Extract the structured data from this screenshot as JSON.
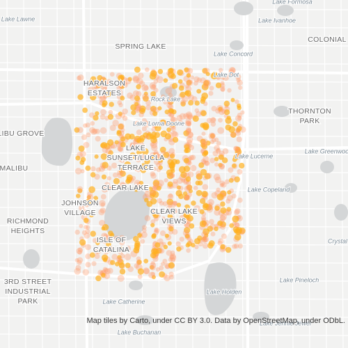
{
  "labels": [
    {
      "lines": [
        "Lake Formosa"
      ],
      "kind": "water"
    },
    {
      "lines": [
        "Lake Lawne"
      ],
      "kind": "water"
    },
    {
      "lines": [
        "Lake Ivanhoe"
      ],
      "kind": "water"
    },
    {
      "lines": [
        "COLONIAL"
      ],
      "kind": "area"
    },
    {
      "lines": [
        "SPRING LAKE"
      ],
      "kind": "area"
    },
    {
      "lines": [
        "Lake Concord"
      ],
      "kind": "water"
    },
    {
      "lines": [
        "Lake Dot"
      ],
      "kind": "water"
    },
    {
      "lines": [
        "HARALSON",
        "ESTATES"
      ],
      "kind": "area"
    },
    {
      "lines": [
        "Rock Lake"
      ],
      "kind": "water"
    },
    {
      "lines": [
        "THORNTON",
        "PARK"
      ],
      "kind": "area"
    },
    {
      "lines": [
        "Lake Lorna Doone"
      ],
      "kind": "water"
    },
    {
      "lines": [
        "LIBU GROVE"
      ],
      "kind": "area"
    },
    {
      "lines": [
        "LAKE",
        "SUNSET/LUCLA",
        "TERRACE"
      ],
      "kind": "area"
    },
    {
      "lines": [
        "Lake Lucerne"
      ],
      "kind": "water"
    },
    {
      "lines": [
        "Lake Greenwood"
      ],
      "kind": "water"
    },
    {
      "lines": [
        "MALIBU"
      ],
      "kind": "area"
    },
    {
      "lines": [
        "CLEAR LAKE"
      ],
      "kind": "area"
    },
    {
      "lines": [
        "Lake Copeland"
      ],
      "kind": "water"
    },
    {
      "lines": [
        "JOHNSON",
        "VILLAGE"
      ],
      "kind": "area"
    },
    {
      "lines": [
        "CLEAR LAKE",
        "VIEWS"
      ],
      "kind": "area"
    },
    {
      "lines": [
        "RICHMOND",
        "HEIGHTS"
      ],
      "kind": "area"
    },
    {
      "lines": [
        "ISLE OF",
        "CATALINA"
      ],
      "kind": "area"
    },
    {
      "lines": [
        "Crystal"
      ],
      "kind": "water"
    },
    {
      "lines": [
        "3RD STREET",
        "INDUSTRIAL",
        "PARK"
      ],
      "kind": "area"
    },
    {
      "lines": [
        "Lake Pineloch"
      ],
      "kind": "water"
    },
    {
      "lines": [
        "Lake Holden"
      ],
      "kind": "water"
    },
    {
      "lines": [
        "Lake Catherine"
      ],
      "kind": "water"
    },
    {
      "lines": [
        "Lake Jennie Jewel"
      ],
      "kind": "water"
    },
    {
      "lines": [
        "Lake Buchanan"
      ],
      "kind": "water"
    }
  ],
  "attribution": "Map tiles by Carto, under CC BY 3.0. Data by OpenStreetMap, under ODbL."
}
